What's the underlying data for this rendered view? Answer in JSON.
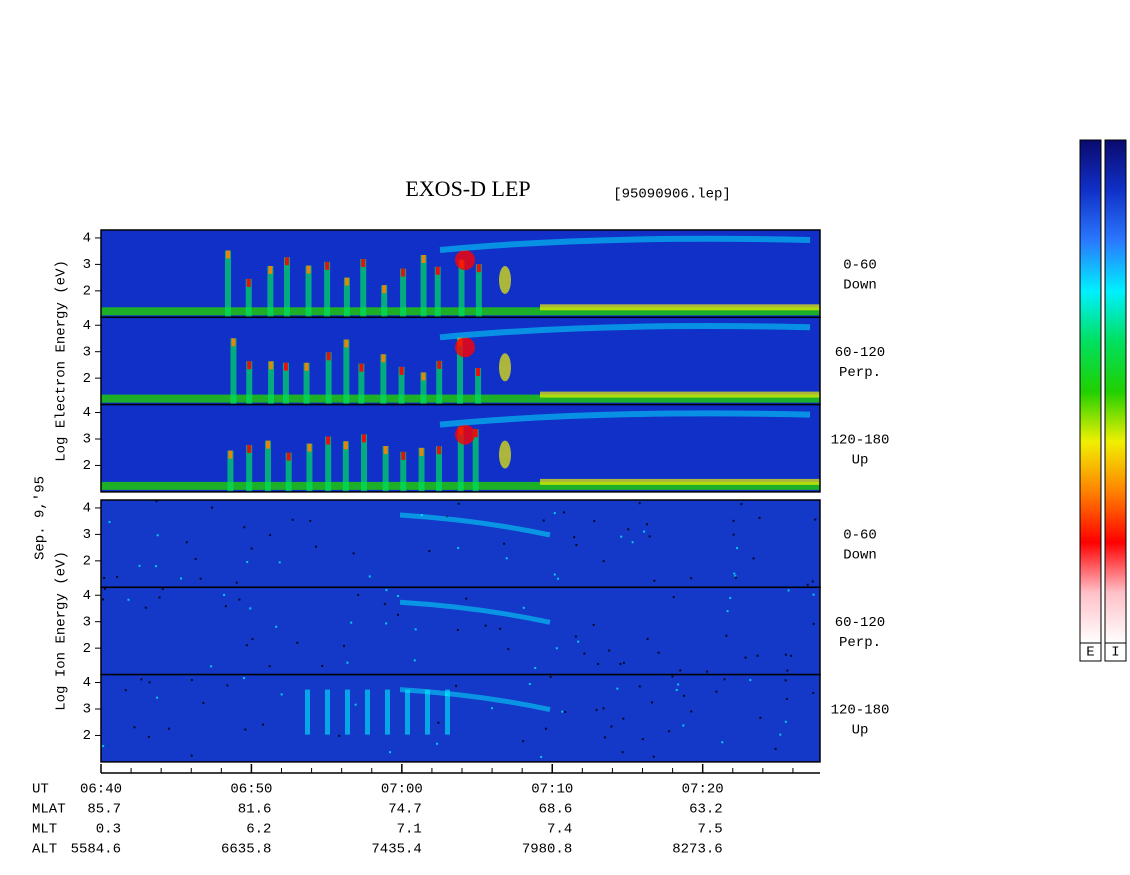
{
  "chart_data": {
    "type": "spectrogram",
    "title": "EXOS-D LEP",
    "file": "[95090906.lep]",
    "date": "Sep. 9,'95",
    "panel_groups": [
      {
        "ylabel": "Log  Electron  Energy (eV)",
        "panels": [
          {
            "pitch": "0-60",
            "direction": "Down"
          },
          {
            "pitch": "60-120",
            "direction": "Perp."
          },
          {
            "pitch": "120-180",
            "direction": "Up"
          }
        ]
      },
      {
        "ylabel": "Log  Ion  Energy (eV)",
        "panels": [
          {
            "pitch": "0-60",
            "direction": "Down"
          },
          {
            "pitch": "60-120",
            "direction": "Perp."
          },
          {
            "pitch": "120-180",
            "direction": "Up"
          }
        ]
      }
    ],
    "ylim": [
      1,
      4.3
    ],
    "yticks": [
      2,
      3,
      4
    ],
    "xlabel": "UT",
    "xlim": [
      400,
      447.8
    ],
    "xticks": [
      {
        "value": 400,
        "label": "06:40"
      },
      {
        "value": 410,
        "label": "06:50"
      },
      {
        "value": 420,
        "label": "07:00"
      },
      {
        "value": 430,
        "label": "07:10"
      },
      {
        "value": 440,
        "label": "07:20"
      }
    ],
    "xminorticks": [
      402,
      404,
      406,
      408,
      412,
      414,
      416,
      418,
      422,
      424,
      426,
      428,
      432,
      434,
      436,
      438,
      442,
      444,
      446
    ],
    "ephemeris": [
      {
        "name": "MLAT",
        "values": [
          85.7,
          81.6,
          74.7,
          68.6,
          63.2
        ]
      },
      {
        "name": "MLT",
        "values": [
          0.3,
          6.2,
          7.1,
          7.4,
          7.5
        ]
      },
      {
        "name": "ALT",
        "values": [
          5584.6,
          6635.8,
          7435.4,
          7980.8,
          8273.6
        ]
      }
    ],
    "colorbar": {
      "colors": [
        "#0a0a6e",
        "#1030c8",
        "#2a78ff",
        "#00f0ff",
        "#00e060",
        "#20d000",
        "#f0f000",
        "#ff8000",
        "#ff0000",
        "#ffc0c8",
        "#ffffff"
      ],
      "labels": [
        "E",
        "I"
      ]
    }
  }
}
